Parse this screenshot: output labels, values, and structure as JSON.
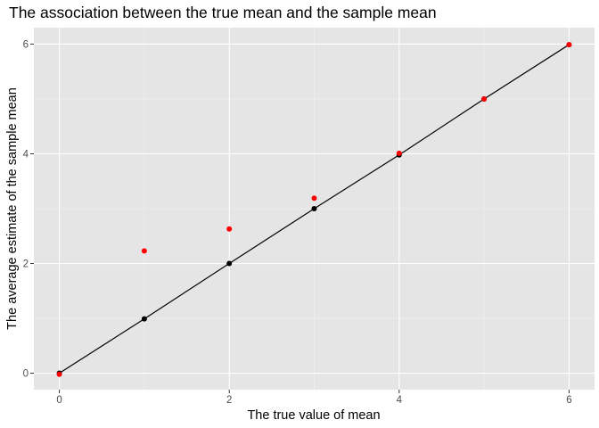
{
  "chart_data": {
    "type": "scatter",
    "title": "The association between the true mean and the sample mean",
    "xlabel": "The true value of mean",
    "ylabel": "The average estimate of the sample mean",
    "xlim": [
      -0.3,
      6.3
    ],
    "ylim": [
      -0.3,
      6.3
    ],
    "x_ticks": [
      0,
      2,
      4,
      6
    ],
    "y_ticks": [
      0,
      2,
      4,
      6
    ],
    "grid": true,
    "legend": "none",
    "panel_background": "#e5e5e5",
    "grid_color": "#ffffff",
    "series": [
      {
        "kind": "line-points",
        "color": "#000000",
        "x": [
          0,
          1,
          2,
          3,
          4,
          5,
          6
        ],
        "y": [
          0.0,
          0.99,
          2.0,
          3.0,
          3.98,
          5.0,
          5.99
        ]
      },
      {
        "kind": "points",
        "color": "#ff0000",
        "x": [
          0,
          1,
          2,
          3,
          4,
          5,
          6
        ],
        "y": [
          -0.02,
          2.23,
          2.63,
          3.19,
          4.01,
          5.0,
          5.99
        ]
      }
    ]
  }
}
